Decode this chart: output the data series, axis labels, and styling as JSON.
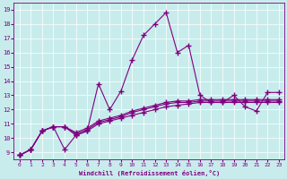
{
  "xlabel": "Windchill (Refroidissement éolien,°C)",
  "background_color": "#c8ecec",
  "line_color": "#800080",
  "xlim": [
    -0.5,
    23.5
  ],
  "ylim": [
    8.5,
    19.5
  ],
  "xticks": [
    0,
    1,
    2,
    3,
    4,
    5,
    6,
    7,
    8,
    9,
    10,
    11,
    12,
    13,
    14,
    15,
    16,
    17,
    18,
    19,
    20,
    21,
    22,
    23
  ],
  "yticks": [
    9,
    10,
    11,
    12,
    13,
    14,
    15,
    16,
    17,
    18,
    19
  ],
  "series": [
    {
      "x": [
        0,
        1,
        2,
        3,
        4,
        5,
        6,
        7,
        8,
        9,
        10,
        11,
        12,
        13,
        14,
        15,
        16,
        17,
        18,
        19,
        20,
        21,
        22,
        23
      ],
      "y": [
        8.8,
        9.2,
        10.5,
        10.8,
        9.2,
        10.2,
        10.5,
        13.8,
        12.0,
        13.3,
        15.5,
        17.2,
        18.0,
        18.8,
        16.0,
        16.5,
        13.0,
        12.5,
        12.5,
        13.0,
        12.2,
        11.9,
        13.2,
        13.2
      ]
    },
    {
      "x": [
        0,
        1,
        2,
        3,
        4,
        5,
        6,
        7,
        8,
        9,
        10,
        11,
        12,
        13,
        14,
        15,
        16,
        17,
        18,
        19,
        20,
        21,
        22,
        23
      ],
      "y": [
        8.8,
        9.2,
        10.5,
        10.8,
        10.8,
        10.2,
        10.5,
        11.0,
        11.2,
        11.4,
        11.6,
        11.8,
        12.0,
        12.2,
        12.3,
        12.4,
        12.5,
        12.5,
        12.5,
        12.5,
        12.5,
        12.5,
        12.5,
        12.5
      ]
    },
    {
      "x": [
        0,
        1,
        2,
        3,
        4,
        5,
        6,
        7,
        8,
        9,
        10,
        11,
        12,
        13,
        14,
        15,
        16,
        17,
        18,
        19,
        20,
        21,
        22,
        23
      ],
      "y": [
        8.8,
        9.2,
        10.5,
        10.8,
        10.8,
        10.3,
        10.6,
        11.1,
        11.3,
        11.5,
        11.8,
        12.0,
        12.2,
        12.4,
        12.5,
        12.5,
        12.6,
        12.6,
        12.6,
        12.6,
        12.6,
        12.6,
        12.6,
        12.6
      ]
    },
    {
      "x": [
        0,
        1,
        2,
        3,
        4,
        5,
        6,
        7,
        8,
        9,
        10,
        11,
        12,
        13,
        14,
        15,
        16,
        17,
        18,
        19,
        20,
        21,
        22,
        23
      ],
      "y": [
        8.8,
        9.2,
        10.5,
        10.8,
        10.8,
        10.4,
        10.7,
        11.2,
        11.4,
        11.6,
        11.9,
        12.1,
        12.3,
        12.5,
        12.6,
        12.6,
        12.7,
        12.7,
        12.7,
        12.7,
        12.7,
        12.7,
        12.7,
        12.7
      ]
    }
  ],
  "marker": "+",
  "markersize": 4,
  "linewidth": 0.8
}
